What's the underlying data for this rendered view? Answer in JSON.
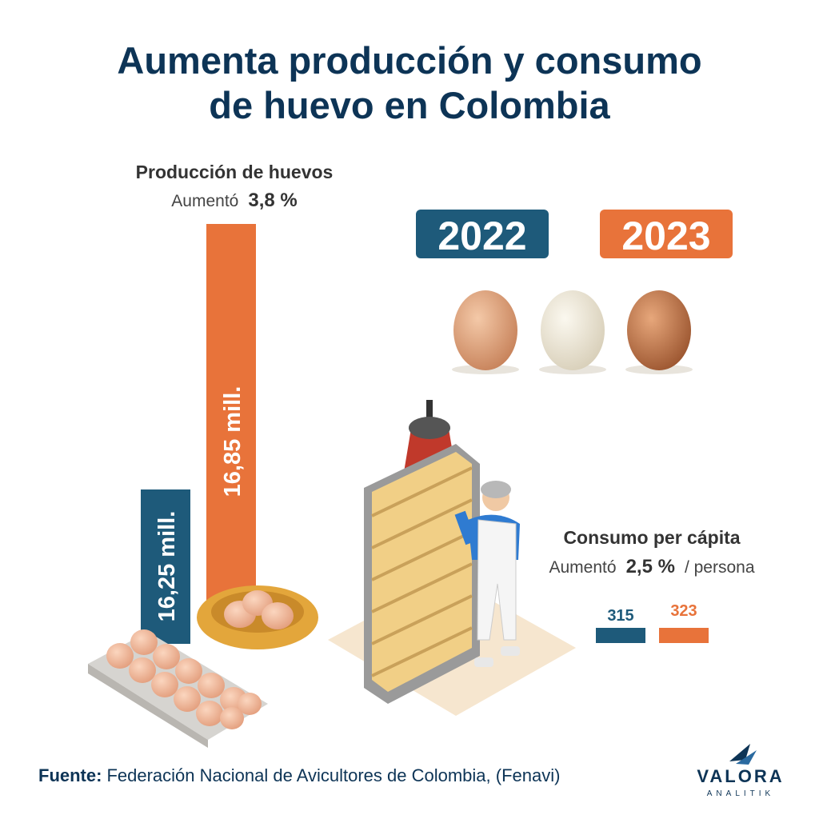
{
  "title": [
    "Aumenta producción y consumo",
    "de huevo en Colombia"
  ],
  "produccion": {
    "heading": "Producción de huevos",
    "change_label": "Aumentó",
    "change": "3,8 %",
    "bars": [
      "16,25 mill.",
      "16,85 mill."
    ]
  },
  "years": [
    "2022",
    "2023"
  ],
  "consumo": {
    "heading": "Consumo per cápita",
    "change_label": "Aumentó",
    "change": "2,5 %",
    "unit": "/ persona",
    "bars": [
      "315",
      "323"
    ]
  },
  "source": {
    "label": "Fuente:",
    "text": "Federación Nacional de Avicultores de Colombia, (Fenavi)"
  },
  "logo": {
    "name": "VALORA",
    "sub": "ANALITIK"
  }
}
